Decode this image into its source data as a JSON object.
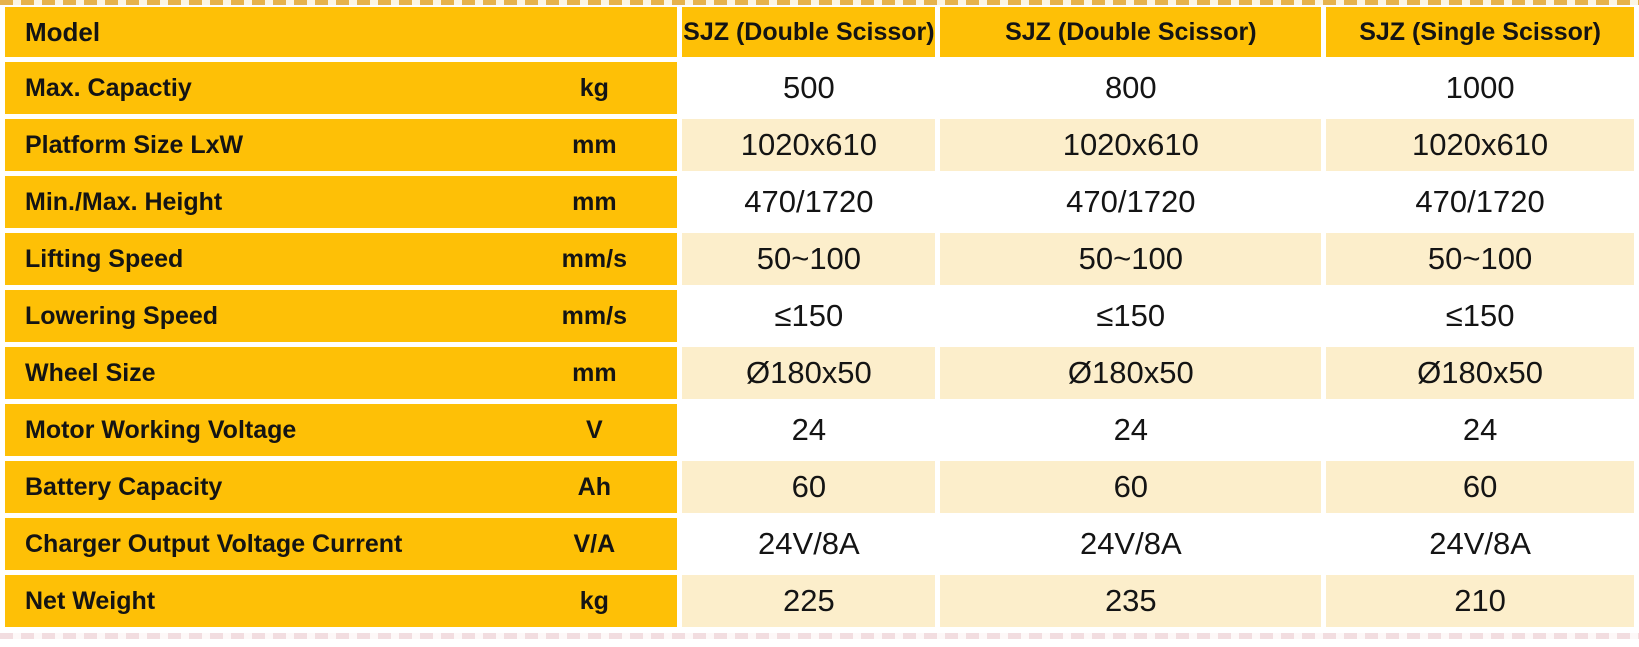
{
  "theme": {
    "yellow": "#fec006",
    "cream": "#fceecb",
    "rowwhite": "#ffffff",
    "text": "#141414",
    "pagebg": "#ffffff"
  },
  "table": {
    "header": {
      "model_label": "Model",
      "columns": [
        "SJZ (Double Scissor)",
        "SJZ (Double Scissor)",
        "SJZ (Single Scissor)"
      ]
    },
    "rows": [
      {
        "label": "Max. Capactiy",
        "unit": "kg",
        "values": [
          "500",
          "800",
          "1000"
        ]
      },
      {
        "label": "Platform Size LxW",
        "unit": "mm",
        "values": [
          "1020x610",
          "1020x610",
          "1020x610"
        ]
      },
      {
        "label": "Min./Max. Height",
        "unit": "mm",
        "values": [
          "470/1720",
          "470/1720",
          "470/1720"
        ]
      },
      {
        "label": "Lifting Speed",
        "unit": "mm/s",
        "values": [
          "50~100",
          "50~100",
          "50~100"
        ]
      },
      {
        "label": "Lowering Speed",
        "unit": "mm/s",
        "values": [
          "≤150",
          "≤150",
          "≤150"
        ]
      },
      {
        "label": "Wheel Size",
        "unit": "mm",
        "values": [
          "Ø180x50",
          "Ø180x50",
          "Ø180x50"
        ]
      },
      {
        "label": "Motor Working Voltage",
        "unit": "V",
        "values": [
          "24",
          "24",
          "24"
        ]
      },
      {
        "label": "Battery Capacity",
        "unit": "Ah",
        "values": [
          "60",
          "60",
          "60"
        ]
      },
      {
        "label": "Charger Output Voltage Current",
        "unit": "V/A",
        "values": [
          "24V/8A",
          "24V/8A",
          "24V/8A"
        ]
      },
      {
        "label": "Net Weight",
        "unit": "kg",
        "values": [
          "225",
          "235",
          "210"
        ]
      }
    ]
  }
}
